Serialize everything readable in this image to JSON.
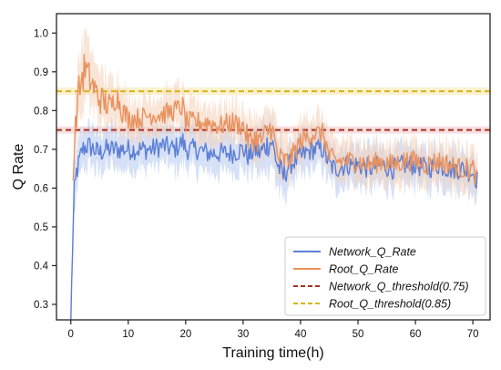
{
  "chart_data": {
    "type": "line",
    "xlabel": "Training time(h)",
    "ylabel": "Q Rate",
    "xlim": [
      -2.5,
      73
    ],
    "ylim": [
      0.26,
      1.05
    ],
    "x_ticks": [
      0,
      10,
      20,
      30,
      40,
      50,
      60,
      70
    ],
    "y_ticks": [
      0.3,
      0.4,
      0.5,
      0.6,
      0.7,
      0.8,
      0.9,
      1.0
    ],
    "legend_position": "bottom-right",
    "grid": false,
    "series": [
      {
        "name": "Network_Q_Rate",
        "color": "#5b7ed6",
        "band_color": "#b4c8f0",
        "x": [
          0,
          0.3,
          0.6,
          1,
          1.5,
          2,
          3,
          4,
          5,
          6,
          8,
          10,
          12,
          14,
          16,
          18,
          19.5,
          20,
          22,
          24,
          26,
          28,
          30,
          31,
          32,
          33,
          34,
          35,
          36,
          37,
          38,
          40,
          42,
          44,
          45,
          46,
          48,
          50,
          52,
          54,
          56,
          58,
          60,
          62,
          64,
          66,
          68,
          70,
          70.8
        ],
        "values": [
          0.26,
          0.45,
          0.58,
          0.64,
          0.67,
          0.7,
          0.71,
          0.7,
          0.69,
          0.7,
          0.7,
          0.7,
          0.7,
          0.7,
          0.71,
          0.7,
          0.72,
          0.7,
          0.7,
          0.69,
          0.69,
          0.69,
          0.7,
          0.68,
          0.7,
          0.69,
          0.71,
          0.72,
          0.66,
          0.63,
          0.66,
          0.68,
          0.7,
          0.7,
          0.66,
          0.65,
          0.66,
          0.66,
          0.65,
          0.66,
          0.65,
          0.66,
          0.66,
          0.65,
          0.66,
          0.65,
          0.65,
          0.64,
          0.62
        ],
        "band": [
          0.0,
          0.06,
          0.07,
          0.06,
          0.05,
          0.05,
          0.05,
          0.05,
          0.05,
          0.05,
          0.05,
          0.05,
          0.05,
          0.05,
          0.05,
          0.05,
          0.05,
          0.05,
          0.05,
          0.05,
          0.05,
          0.05,
          0.05,
          0.05,
          0.05,
          0.06,
          0.06,
          0.06,
          0.06,
          0.06,
          0.05,
          0.05,
          0.05,
          0.05,
          0.05,
          0.05,
          0.05,
          0.05,
          0.05,
          0.05,
          0.05,
          0.05,
          0.05,
          0.05,
          0.05,
          0.05,
          0.05,
          0.05,
          0.05
        ]
      },
      {
        "name": "Root_Q_Rate",
        "color": "#e8925f",
        "band_color": "#f6d2b8",
        "x": [
          0.4,
          0.8,
          1.2,
          1.8,
          2.5,
          3,
          4,
          5,
          6,
          7,
          8,
          9,
          10,
          12,
          14,
          16,
          18,
          19.5,
          20,
          22,
          24,
          26,
          28,
          30,
          31,
          32,
          33,
          34,
          35,
          36,
          37,
          38,
          40,
          42,
          44,
          45,
          46,
          48,
          50,
          52,
          54,
          56,
          58,
          60,
          62,
          64,
          66,
          68,
          70,
          70.8
        ],
        "values": [
          0.62,
          0.76,
          0.83,
          0.88,
          0.91,
          0.89,
          0.86,
          0.83,
          0.82,
          0.81,
          0.84,
          0.8,
          0.78,
          0.78,
          0.79,
          0.79,
          0.8,
          0.81,
          0.77,
          0.77,
          0.77,
          0.76,
          0.77,
          0.76,
          0.72,
          0.73,
          0.72,
          0.74,
          0.76,
          0.68,
          0.67,
          0.67,
          0.72,
          0.74,
          0.74,
          0.68,
          0.67,
          0.67,
          0.67,
          0.66,
          0.67,
          0.66,
          0.67,
          0.67,
          0.66,
          0.67,
          0.66,
          0.65,
          0.65,
          0.62
        ],
        "band": [
          0.02,
          0.06,
          0.08,
          0.09,
          0.09,
          0.08,
          0.07,
          0.07,
          0.07,
          0.06,
          0.06,
          0.06,
          0.05,
          0.05,
          0.05,
          0.05,
          0.05,
          0.05,
          0.05,
          0.05,
          0.05,
          0.05,
          0.05,
          0.05,
          0.06,
          0.06,
          0.06,
          0.06,
          0.06,
          0.06,
          0.06,
          0.05,
          0.05,
          0.05,
          0.05,
          0.05,
          0.05,
          0.05,
          0.05,
          0.05,
          0.05,
          0.05,
          0.05,
          0.05,
          0.05,
          0.05,
          0.05,
          0.05,
          0.05,
          0.05
        ]
      }
    ],
    "thresholds": [
      {
        "name": "Network_Q_threshold(0.75)",
        "value": 0.75,
        "color": "#a4301e",
        "band_color": "#f2c4c9"
      },
      {
        "name": "Root_Q_threshold(0.85)",
        "value": 0.85,
        "color": "#d9b21c",
        "band_color": "#f6e7a6"
      }
    ]
  }
}
